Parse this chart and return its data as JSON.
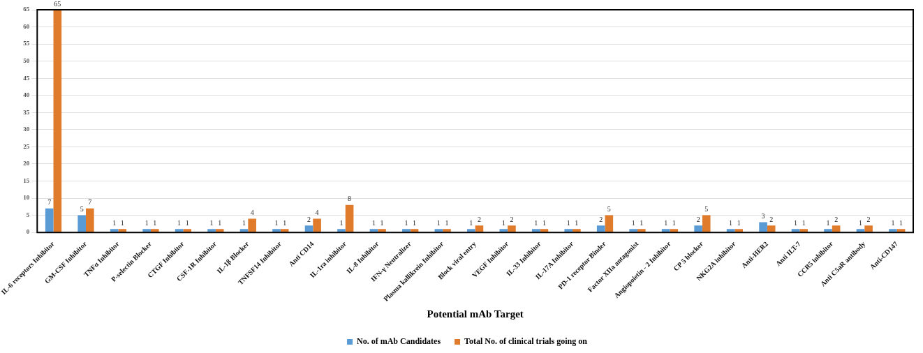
{
  "chart_data": {
    "type": "bar",
    "xlabel": "Potential mAb Target",
    "categories": [
      "IL-6 receptors Inhibitor",
      "GM-CSF Inhibitor",
      "TNFα Inhibitor",
      "P-selectin Blocker",
      "CTGF Inhibitor",
      "CSF-1R Inhibitor",
      "IL-1β Blocker",
      "TNFSF14 Inhibitor",
      "Anti CD14",
      "IL-1ra inhibitor",
      "IL-8 Inhibitor",
      "IFN-γ Neutralizer",
      "Plasma kallikrein Inhibitor",
      "Block viral entry",
      "VEGF Inhibitor",
      "IL-33 Inhibitor",
      "IL-17A Inhibitor",
      "PD-1 receptor Binder",
      "Factor XIIa antagonist",
      "Angiopoietin - 2 Inhibitor",
      "CP 5 blocker",
      "NKG2A inhibitor",
      "Anti-HER2",
      "Anti ILT-7",
      "CCR5 inhibitor",
      "Anti C5aR antibody",
      "Anti-CD147"
    ],
    "series": [
      {
        "name": "No. of mAb Candidates",
        "color": "#5b9bd5",
        "values": [
          7,
          5,
          1,
          1,
          1,
          1,
          1,
          1,
          2,
          1,
          1,
          1,
          1,
          1,
          1,
          1,
          1,
          2,
          1,
          1,
          2,
          1,
          3,
          1,
          1,
          1,
          1
        ]
      },
      {
        "name": "Total No. of clinical trials going on",
        "color": "#e07b2c",
        "values": [
          65,
          7,
          1,
          1,
          1,
          1,
          4,
          1,
          4,
          8,
          1,
          1,
          1,
          2,
          2,
          1,
          1,
          5,
          1,
          1,
          5,
          1,
          2,
          1,
          2,
          2,
          1
        ]
      }
    ],
    "ylim": [
      0,
      65
    ],
    "yticks": [
      0,
      5,
      10,
      15,
      20,
      25,
      30,
      35,
      40,
      45,
      50,
      55,
      60,
      65
    ],
    "grid": "y",
    "legend": "bottom",
    "data_labels": true
  }
}
